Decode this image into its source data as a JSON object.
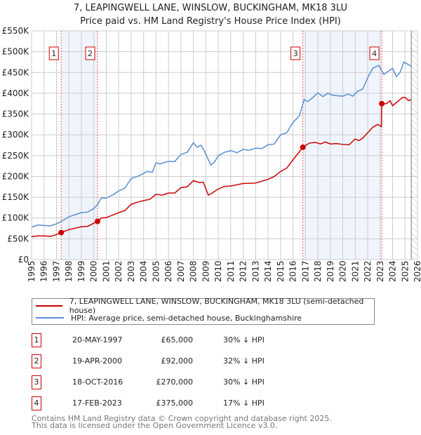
{
  "chart_data": {
    "type": "line",
    "title": "7, LEAPINGWELL LANE, WINSLOW, BUCKINGHAM, MK18 3LU",
    "subtitle": "Price paid vs. HM Land Registry's House Price Index (HPI)",
    "xlim": [
      1995,
      2026
    ],
    "ylim": [
      0,
      550000
    ],
    "x_ticks": [
      "1995",
      "1996",
      "1997",
      "1998",
      "1999",
      "2000",
      "2001",
      "2002",
      "2003",
      "2004",
      "2005",
      "2006",
      "2007",
      "2008",
      "2009",
      "2010",
      "2011",
      "2012",
      "2013",
      "2014",
      "2015",
      "2016",
      "2017",
      "2018",
      "2019",
      "2020",
      "2021",
      "2022",
      "2023",
      "2024",
      "2025",
      "2026"
    ],
    "y_ticks": [
      {
        "v": 0,
        "label": "£0"
      },
      {
        "v": 50000,
        "label": "£50K"
      },
      {
        "v": 100000,
        "label": "£100K"
      },
      {
        "v": 150000,
        "label": "£150K"
      },
      {
        "v": 200000,
        "label": "£200K"
      },
      {
        "v": 250000,
        "label": "£250K"
      },
      {
        "v": 300000,
        "label": "£300K"
      },
      {
        "v": 350000,
        "label": "£350K"
      },
      {
        "v": 400000,
        "label": "£400K"
      },
      {
        "v": 450000,
        "label": "£450K"
      },
      {
        "v": 500000,
        "label": "£500K"
      },
      {
        "v": 550000,
        "label": "£550K"
      }
    ],
    "grid": true,
    "series": [
      {
        "name": "7, LEAPINGWELL LANE, WINSLOW, BUCKINGHAM, MK18 3LU (semi-detached house)",
        "color": "#cc0000",
        "x": [
          1995,
          1995.5,
          1996,
          1996.5,
          1997,
          1997.38,
          1998,
          1999,
          1999.5,
          2000.3,
          2000.6,
          2001,
          2002,
          2002.5,
          2003,
          2003.5,
          2004,
          2004.5,
          2005,
          2005.5,
          2006,
          2006.5,
          2007,
          2007.5,
          2008,
          2008.5,
          2008.8,
          2009,
          2009.2,
          2009.5,
          2010,
          2010.5,
          2011,
          2011.5,
          2012,
          2013,
          2014,
          2014.5,
          2015,
          2015.5,
          2016,
          2016.79,
          2017.3,
          2017.8,
          2018.2,
          2018.6,
          2019,
          2019.5,
          2020,
          2020.5,
          2021,
          2021.3,
          2021.6,
          2022,
          2022.4,
          2022.8,
          2023.1,
          2023.13,
          2023.5,
          2023.8,
          2024,
          2024.4,
          2024.8,
          2025,
          2025.3,
          2025.5
        ],
        "y": [
          55000,
          57000,
          57000,
          56000,
          60000,
          65000,
          72000,
          79000,
          80000,
          92000,
          100000,
          101000,
          113000,
          118000,
          133000,
          138000,
          142000,
          145000,
          157000,
          155000,
          160000,
          160000,
          173000,
          175000,
          190000,
          185000,
          186000,
          170000,
          155000,
          160000,
          170000,
          176000,
          177000,
          180000,
          183000,
          184000,
          193000,
          200000,
          212000,
          220000,
          240000,
          270000,
          280000,
          282000,
          278000,
          283000,
          278000,
          279000,
          277000,
          276000,
          290000,
          286000,
          292000,
          305000,
          318000,
          325000,
          320000,
          375000,
          375000,
          382000,
          370000,
          380000,
          390000,
          390000,
          382000,
          385000
        ]
      },
      {
        "name": "HPI: Average price, semi-detached house, Buckinghamshire",
        "color": "#5b8fd4",
        "x": [
          1995,
          1995.5,
          1996,
          1996.5,
          1997,
          1997.4,
          1998,
          1998.5,
          1999,
          1999.5,
          2000,
          2000.3,
          2000.6,
          2001,
          2001.5,
          2002,
          2002.5,
          2003,
          2003.5,
          2004,
          2004.3,
          2004.7,
          2005,
          2005.3,
          2005.6,
          2006,
          2006.5,
          2007,
          2007.5,
          2008,
          2008.3,
          2008.6,
          2008.9,
          2009.2,
          2009.4,
          2009.7,
          2010,
          2010.5,
          2011,
          2011.5,
          2012,
          2012.5,
          2013,
          2013.5,
          2014,
          2014.5,
          2015,
          2015.5,
          2016,
          2016.5,
          2016.9,
          2017.2,
          2017.6,
          2018,
          2018.4,
          2018.8,
          2019.2,
          2019.6,
          2020,
          2020.4,
          2020.8,
          2021.2,
          2021.6,
          2022,
          2022.4,
          2022.9,
          2023.3,
          2023.6,
          2024,
          2024.3,
          2024.6,
          2024.9,
          2025.2,
          2025.5
        ],
        "y": [
          78000,
          83000,
          82000,
          81000,
          86000,
          92000,
          103000,
          108000,
          113000,
          114000,
          123000,
          132000,
          148000,
          148000,
          155000,
          165000,
          172000,
          195000,
          200000,
          207000,
          212000,
          210000,
          233000,
          230000,
          233000,
          236000,
          236000,
          253000,
          258000,
          281000,
          270000,
          275000,
          260000,
          240000,
          227000,
          235000,
          250000,
          258000,
          262000,
          257000,
          265000,
          263000,
          268000,
          267000,
          276000,
          278000,
          300000,
          305000,
          330000,
          345000,
          385000,
          380000,
          390000,
          401000,
          392000,
          400000,
          395000,
          394000,
          393000,
          398000,
          393000,
          405000,
          410000,
          437000,
          460000,
          467000,
          445000,
          452000,
          460000,
          440000,
          450000,
          475000,
          470000,
          465000
        ]
      }
    ],
    "sales": [
      {
        "n": "1",
        "x": 1997.38,
        "y": 65000
      },
      {
        "n": "2",
        "x": 2000.3,
        "y": 92000
      },
      {
        "n": "3",
        "x": 2016.79,
        "y": 270000
      },
      {
        "n": "4",
        "x": 2023.13,
        "y": 375000
      }
    ],
    "shaded_ranges": [
      [
        1997.38,
        2000.3
      ],
      [
        2016.79,
        2023.13
      ]
    ],
    "forecast_hatch_from": 2025.5
  },
  "legend": {
    "property": "7, LEAPINGWELL LANE, WINSLOW, BUCKINGHAM, MK18 3LU (semi-detached house)",
    "hpi": "HPI: Average price, semi-detached house, Buckinghamshire"
  },
  "table": [
    {
      "n": "1",
      "date": "20-MAY-1997",
      "price": "£65,000",
      "hpi": "30% ↓ HPI"
    },
    {
      "n": "2",
      "date": "19-APR-2000",
      "price": "£92,000",
      "hpi": "32% ↓ HPI"
    },
    {
      "n": "3",
      "date": "18-OCT-2016",
      "price": "£270,000",
      "hpi": "30% ↓ HPI"
    },
    {
      "n": "4",
      "date": "17-FEB-2023",
      "price": "£375,000",
      "hpi": "17% ↓ HPI"
    }
  ],
  "footer": [
    "Contains HM Land Registry data © Crown copyright and database right 2025.",
    "This data is licensed under the Open Government Licence v3.0."
  ]
}
